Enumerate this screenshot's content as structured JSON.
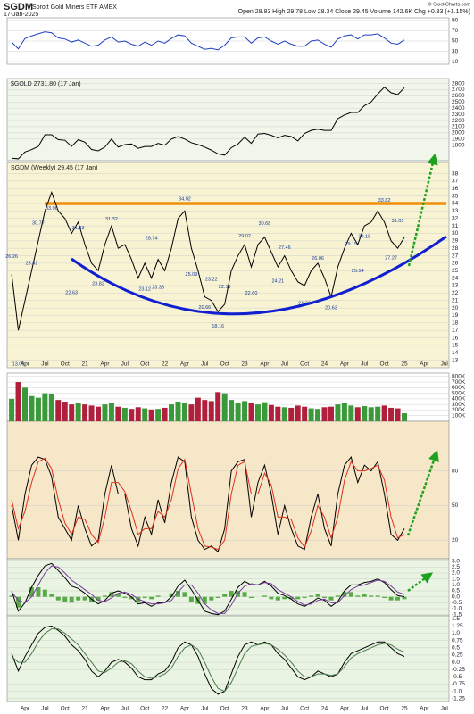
{
  "header": {
    "symbol": "SGDM",
    "name": "Sprott Gold Miners ETF  AMEX",
    "date": "17-Jan-2025",
    "stats": "Open 28.83  High 29.78  Low 28.34  Close 29.45  Volume 142.6K  Chg +0.33 (+1.15%)",
    "credit": "© StockCharts.com"
  },
  "chart_data": [
    {
      "type": "line",
      "color": "#2040c0",
      "ylim": [
        5,
        95
      ],
      "yticks": [
        90,
        70,
        50,
        30,
        10
      ],
      "grid": true,
      "values": [
        48,
        35,
        55,
        60,
        64,
        68,
        66,
        56,
        54,
        48,
        52,
        46,
        40,
        42,
        52,
        58,
        48,
        50,
        44,
        40,
        48,
        42,
        50,
        46,
        55,
        62,
        60,
        46,
        40,
        34,
        36,
        33,
        42,
        56,
        58,
        58,
        46,
        56,
        58,
        50,
        44,
        50,
        44,
        40,
        40,
        50,
        52,
        44,
        38,
        54,
        60,
        62,
        54,
        62,
        62,
        64,
        56,
        46,
        44,
        52,
        null,
        null,
        null,
        null,
        null,
        null,
        null
      ]
    },
    {
      "type": "line",
      "title": "$GOLD 2731.80 (17 Jan)",
      "color": "#000000",
      "ylim": [
        1550,
        2880
      ],
      "yticks": [
        2800,
        2700,
        2600,
        2500,
        2400,
        2300,
        2200,
        2100,
        2000,
        1900,
        1800
      ],
      "grid": true,
      "values": [
        1590,
        1580,
        1690,
        1730,
        1780,
        1970,
        1970,
        1890,
        1880,
        1780,
        1890,
        1850,
        1730,
        1710,
        1770,
        1900,
        1770,
        1810,
        1820,
        1750,
        1780,
        1780,
        1830,
        1800,
        1900,
        1940,
        1900,
        1840,
        1810,
        1770,
        1720,
        1660,
        1640,
        1760,
        1820,
        1930,
        1830,
        1980,
        1990,
        1960,
        1920,
        1960,
        1940,
        1870,
        1990,
        2040,
        2060,
        2040,
        2040,
        2230,
        2290,
        2330,
        2330,
        2440,
        2500,
        2630,
        2740,
        2650,
        2620,
        2730,
        null,
        null,
        null,
        null,
        null,
        null,
        null
      ]
    },
    {
      "type": "line",
      "title": "SGDM (Weekly) 29.45 (17 Jan)",
      "color": "#000000",
      "ylim": [
        12,
        39.5
      ],
      "yticks": [
        38,
        37,
        36,
        35,
        34,
        33,
        32,
        31,
        30,
        29,
        28,
        27,
        26,
        25,
        24,
        23,
        22,
        21,
        20,
        19,
        18,
        17,
        16,
        15,
        14,
        13
      ],
      "grid": true,
      "resistance": 34,
      "resistance_color": "#f0900a",
      "categories": [
        null,
        null,
        "Apr",
        null,
        null,
        "Jul",
        null,
        null,
        "Oct",
        null,
        null,
        "21",
        null,
        null,
        "Apr",
        null,
        null,
        "Jul",
        null,
        null,
        "Oct",
        null,
        null,
        "22",
        null,
        null,
        "Apr",
        null,
        null,
        "Jul",
        null,
        null,
        "Oct",
        null,
        null,
        "23",
        null,
        null,
        "Apr",
        null,
        null,
        "Jul",
        null,
        null,
        "Oct",
        null,
        null,
        "24",
        null,
        null,
        "Apr",
        null,
        null,
        "Jul",
        null,
        null,
        "Oct",
        null,
        null,
        "25",
        null,
        null,
        "Apr",
        null,
        null,
        "Jul",
        null
      ],
      "values": [
        24.5,
        17,
        21,
        25,
        29,
        33,
        35.5,
        33,
        32,
        30,
        31.5,
        28.5,
        26,
        25,
        28.5,
        31,
        28,
        28.5,
        26.5,
        24,
        26,
        24,
        26.5,
        25,
        28,
        32,
        33,
        28,
        25,
        21.5,
        21,
        19.5,
        20.5,
        25,
        27,
        28.5,
        25.5,
        28.5,
        29.5,
        27.5,
        25.5,
        27,
        25,
        23.5,
        23,
        25,
        26,
        24,
        21.5,
        25.5,
        28,
        30,
        28.5,
        31,
        31.5,
        33,
        31.5,
        29,
        28,
        29.45,
        null,
        null,
        null,
        null,
        null,
        null,
        null
      ],
      "point_labels": [
        26.26,
        13.06,
        null,
        25.41,
        30.77,
        null,
        33.96,
        null,
        null,
        22.63,
        31.33,
        null,
        null,
        23.82,
        null,
        31.32,
        null,
        null,
        null,
        null,
        23.12,
        28.74,
        23.38,
        null,
        null,
        null,
        34.02,
        25.09,
        null,
        20.66,
        23.22,
        18.16,
        22.19,
        null,
        null,
        29.02,
        {
          "value": 22.6,
          "label": "22.60"
        },
        null,
        30.68,
        null,
        24.21,
        27.46,
        null,
        null,
        {
          "value": 21.2,
          "label": "21.20"
        },
        null,
        26.06,
        null,
        20.63,
        null,
        null,
        29.15,
        25.54,
        30.18,
        null,
        null,
        33.82,
        27.27,
        31.05,
        null,
        null,
        null,
        null,
        null,
        null,
        null,
        null
      ]
    },
    {
      "type": "bar",
      "up_color": "#3a9a3a",
      "down_color": "#b0203c",
      "ylim": [
        0,
        860000
      ],
      "grid": true,
      "yticks": [
        {
          "value": 800000,
          "label": "800K"
        },
        {
          "value": 700000,
          "label": "700K"
        },
        {
          "value": 600000,
          "label": "600K"
        },
        {
          "value": 500000,
          "label": "500K"
        },
        {
          "value": 400000,
          "label": "400K"
        },
        {
          "value": 300000,
          "label": "300K"
        },
        {
          "value": 200000,
          "label": "200K"
        },
        {
          "value": 100000,
          "label": "100K"
        }
      ],
      "values": [
        400000,
        700000,
        600000,
        450000,
        420000,
        500000,
        480000,
        380000,
        350000,
        300000,
        320000,
        300000,
        280000,
        260000,
        300000,
        320000,
        260000,
        240000,
        220000,
        250000,
        230000,
        210000,
        220000,
        240000,
        300000,
        350000,
        330000,
        300000,
        420000,
        380000,
        360000,
        520000,
        500000,
        380000,
        330000,
        360000,
        320000,
        300000,
        340000,
        290000,
        260000,
        250000,
        240000,
        280000,
        260000,
        230000,
        220000,
        250000,
        260000,
        300000,
        320000,
        280000,
        250000,
        270000,
        250000,
        260000,
        280000,
        240000,
        230000,
        142600,
        null,
        null,
        null,
        null,
        null,
        null,
        null
      ]
    },
    {
      "type": "line",
      "ylim": [
        4,
        123
      ],
      "yticks": [
        80,
        50,
        20
      ],
      "grid": true,
      "series": [
        {
          "color": "#000000",
          "values": [
            50,
            20,
            60,
            85,
            92,
            90,
            75,
            40,
            30,
            20,
            50,
            30,
            15,
            20,
            60,
            85,
            60,
            60,
            30,
            15,
            40,
            25,
            55,
            35,
            70,
            92,
            88,
            40,
            20,
            12,
            15,
            10,
            30,
            80,
            88,
            90,
            40,
            70,
            85,
            60,
            25,
            50,
            30,
            15,
            12,
            40,
            60,
            30,
            15,
            60,
            85,
            92,
            70,
            85,
            80,
            88,
            60,
            25,
            20,
            30,
            null,
            null,
            null,
            null,
            null,
            null,
            null
          ]
        },
        {
          "color": "#e0301e",
          "values": [
            55,
            30,
            45,
            70,
            88,
            91,
            82,
            55,
            35,
            25,
            40,
            38,
            25,
            18,
            40,
            70,
            70,
            62,
            45,
            25,
            30,
            30,
            45,
            40,
            55,
            82,
            90,
            60,
            30,
            15,
            14,
            12,
            20,
            60,
            85,
            88,
            60,
            60,
            78,
            68,
            40,
            40,
            38,
            22,
            14,
            28,
            50,
            40,
            22,
            40,
            72,
            88,
            80,
            80,
            82,
            85,
            72,
            40,
            22,
            25,
            null,
            null,
            null,
            null,
            null,
            null,
            null
          ]
        }
      ]
    },
    {
      "type": "line",
      "ylim": [
        -1.6,
        3.2
      ],
      "grid": true,
      "histogram_color": "#5aaa4a",
      "yticks": [
        {
          "value": 3,
          "label": "3.0"
        },
        2.5,
        {
          "value": 2,
          "label": "2.0"
        },
        1.5,
        {
          "value": 1,
          "label": "1.0"
        },
        0.5,
        {
          "value": 0,
          "label": "0.0"
        },
        -0.5,
        {
          "value": -1,
          "label": "-1.0"
        },
        -1.5
      ],
      "series": [
        {
          "color": "#000000",
          "values": [
            0.5,
            -1.2,
            -0.5,
            0.8,
            1.8,
            2.6,
            2.8,
            2.2,
            1.6,
            0.9,
            0.7,
            0.3,
            -0.2,
            -0.6,
            -0.3,
            0.3,
            0.5,
            0.3,
            0,
            -0.6,
            -0.5,
            -0.8,
            -0.5,
            -0.5,
            0,
            0.9,
            1.4,
            0.6,
            -0.3,
            -1.2,
            -1.4,
            -1.5,
            -1.2,
            -0.2,
            0.8,
            1.3,
            1,
            1,
            1.3,
            0.9,
            0.3,
            0.1,
            -0.2,
            -0.6,
            -0.8,
            -0.5,
            -0.1,
            -0.3,
            -0.8,
            -0.4,
            0.5,
            1,
            1,
            1.2,
            1.3,
            1.5,
            1.2,
            0.6,
            0.1,
            0,
            null,
            null,
            null,
            null,
            null,
            null,
            null
          ]
        },
        {
          "color": "#7a3aa0",
          "values": [
            0.4,
            -0.3,
            -0.5,
            0,
            1,
            2,
            2.6,
            2.5,
            2,
            1.4,
            1,
            0.6,
            0.2,
            -0.3,
            -0.4,
            -0.1,
            0.3,
            0.4,
            0.2,
            -0.2,
            -0.4,
            -0.6,
            -0.6,
            -0.5,
            -0.3,
            0.4,
            1,
            1,
            0.3,
            -0.6,
            -1.1,
            -1.4,
            -1.4,
            -0.7,
            0.3,
            0.9,
            1.1,
            1,
            1.2,
            1.1,
            0.6,
            0.3,
            0,
            -0.4,
            -0.7,
            -0.6,
            -0.3,
            -0.2,
            -0.5,
            -0.5,
            0.1,
            0.6,
            0.9,
            1,
            1.2,
            1.4,
            1.3,
            0.9,
            0.4,
            0.2,
            null,
            null,
            null,
            null,
            null,
            null,
            null
          ]
        }
      ],
      "histogram": [
        0.1,
        -0.9,
        0,
        0.8,
        0.8,
        0.6,
        0.2,
        -0.3,
        -0.4,
        -0.5,
        -0.3,
        -0.3,
        -0.4,
        -0.3,
        0.1,
        0.4,
        0.2,
        -0.1,
        -0.2,
        -0.4,
        -0.1,
        -0.2,
        0.1,
        0,
        0.3,
        0.5,
        0.4,
        -0.4,
        -0.6,
        -0.6,
        -0.3,
        -0.1,
        0.2,
        0.5,
        0.5,
        0.4,
        -0.1,
        0,
        0.1,
        -0.2,
        -0.3,
        -0.2,
        -0.2,
        -0.2,
        -0.1,
        0.1,
        0.2,
        -0.1,
        -0.3,
        0.1,
        0.4,
        0.4,
        0.1,
        0.2,
        0.1,
        0.1,
        -0.1,
        -0.3,
        -0.3,
        -0.2,
        null,
        null,
        null,
        null,
        null,
        null,
        null
      ]
    },
    {
      "type": "line",
      "ylim": [
        -1.35,
        1.6
      ],
      "grid": true,
      "yticks": [
        {
          "value": 1.5,
          "label": "1.5"
        },
        1.25,
        {
          "value": 1,
          "label": "1.0"
        },
        0.75,
        0.5,
        0.25,
        {
          "value": 0,
          "label": "0.0"
        },
        -0.25,
        -0.5,
        -0.75,
        {
          "value": -1,
          "label": "-1.0"
        },
        -1.25
      ],
      "series": [
        {
          "color": "#000000",
          "values": [
            0.3,
            -0.3,
            0.2,
            0.6,
            1,
            1.2,
            1.25,
            1.1,
            0.9,
            0.6,
            0.4,
            0.1,
            -0.3,
            -0.5,
            -0.3,
            0,
            0.1,
            0,
            -0.2,
            -0.5,
            -0.6,
            -0.6,
            -0.4,
            -0.3,
            0,
            0.5,
            0.7,
            0.6,
            0.2,
            -0.4,
            -0.9,
            -1.1,
            -1,
            -0.4,
            0.2,
            0.6,
            0.7,
            0.6,
            0.7,
            0.6,
            0.3,
            0.1,
            -0.2,
            -0.5,
            -0.6,
            -0.5,
            -0.3,
            -0.4,
            -0.5,
            -0.4,
            0,
            0.3,
            0.4,
            0.5,
            0.6,
            0.7,
            0.7,
            0.5,
            0.3,
            0.2,
            null,
            null,
            null,
            null,
            null,
            null,
            null
          ]
        },
        {
          "color": "#4a7a4a",
          "values": [
            0.2,
            0,
            0,
            0.3,
            0.7,
            1,
            1.15,
            1.15,
            1,
            0.8,
            0.6,
            0.3,
            0,
            -0.3,
            -0.35,
            -0.2,
            0,
            0.05,
            -0.05,
            -0.3,
            -0.5,
            -0.55,
            -0.5,
            -0.4,
            -0.2,
            0.2,
            0.5,
            0.6,
            0.45,
            0,
            -0.5,
            -0.9,
            -1,
            -0.7,
            -0.2,
            0.3,
            0.55,
            0.6,
            0.65,
            0.6,
            0.45,
            0.25,
            0,
            -0.3,
            -0.5,
            -0.5,
            -0.4,
            -0.4,
            -0.45,
            -0.4,
            -0.15,
            0.15,
            0.3,
            0.4,
            0.5,
            0.6,
            0.65,
            0.6,
            0.45,
            0.35,
            null,
            null,
            null,
            null,
            null,
            null,
            null
          ]
        }
      ]
    }
  ]
}
